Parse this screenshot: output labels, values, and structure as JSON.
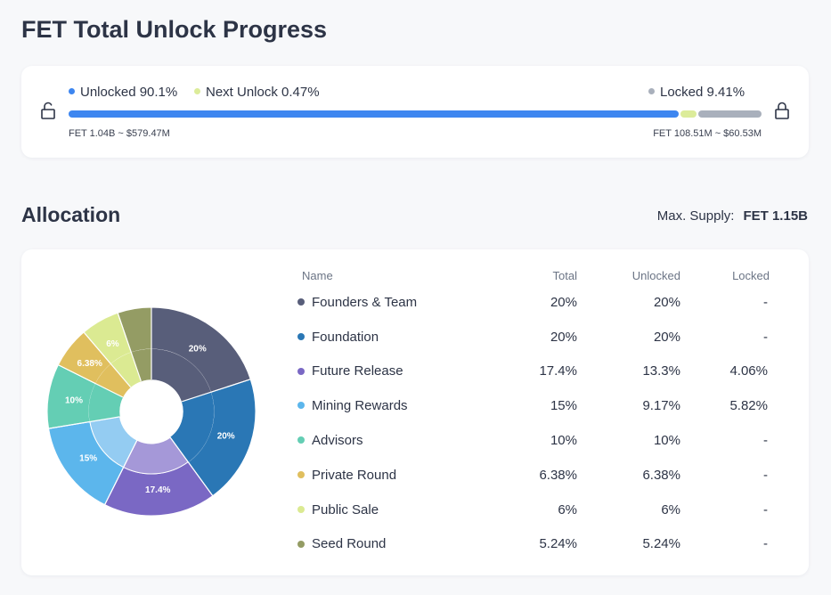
{
  "title": "FET Total Unlock Progress",
  "progress": {
    "unlocked_label": "Unlocked 90.1%",
    "next_unlock_label": "Next Unlock 0.47%",
    "locked_label": "Locked 9.41%",
    "unlocked_amount": "FET 1.04B ~ $579.47M",
    "locked_amount": "FET 108.51M ~ $60.53M",
    "unlocked_pct": 90.1,
    "next_unlock_pct": 0.47,
    "locked_pct": 9.41,
    "colors": {
      "unlocked": "#3d86f0",
      "next_unlock": "#dcec9a",
      "locked": "#a9b0bc"
    }
  },
  "allocation": {
    "heading": "Allocation",
    "max_supply_label": "Max. Supply:",
    "max_supply_value": "FET 1.15B",
    "columns": [
      "Name",
      "Total",
      "Unlocked",
      "Locked"
    ]
  },
  "chart_data": {
    "type": "pie",
    "categories": [
      "Founders & Team",
      "Foundation",
      "Future Release",
      "Mining Rewards",
      "Advisors",
      "Private Round",
      "Public Sale",
      "Seed Round"
    ],
    "values": [
      20,
      20,
      17.4,
      15,
      10,
      6.38,
      6,
      5.24
    ],
    "unlocked": [
      20,
      20,
      13.3,
      9.17,
      10,
      6.38,
      6,
      5.24
    ],
    "locked": [
      null,
      null,
      4.06,
      5.82,
      null,
      null,
      null,
      null
    ],
    "labels": [
      "20%",
      "20%",
      "17.4%",
      "15%",
      "10%",
      "6.38%",
      "6%",
      ""
    ],
    "colors": [
      "#585e7a",
      "#2a77b5",
      "#7a68c4",
      "#5cb6ec",
      "#64ceb4",
      "#e0bf5e",
      "#dbea92",
      "#949c64"
    ],
    "inner_colors": [
      "#585e7a",
      "#2a77b5",
      "#a598d8",
      "#94ccf2",
      "#64ceb4",
      "#e0bf5e",
      "#dbea92",
      "#949c64"
    ]
  },
  "table": {
    "rows": [
      {
        "name": "Founders & Team",
        "total": "20%",
        "unlocked": "20%",
        "locked": "-"
      },
      {
        "name": "Foundation",
        "total": "20%",
        "unlocked": "20%",
        "locked": "-"
      },
      {
        "name": "Future Release",
        "total": "17.4%",
        "unlocked": "13.3%",
        "locked": "4.06%"
      },
      {
        "name": "Mining Rewards",
        "total": "15%",
        "unlocked": "9.17%",
        "locked": "5.82%"
      },
      {
        "name": "Advisors",
        "total": "10%",
        "unlocked": "10%",
        "locked": "-"
      },
      {
        "name": "Private Round",
        "total": "6.38%",
        "unlocked": "6.38%",
        "locked": "-"
      },
      {
        "name": "Public Sale",
        "total": "6%",
        "unlocked": "6%",
        "locked": "-"
      },
      {
        "name": "Seed Round",
        "total": "5.24%",
        "unlocked": "5.24%",
        "locked": "-"
      }
    ]
  }
}
